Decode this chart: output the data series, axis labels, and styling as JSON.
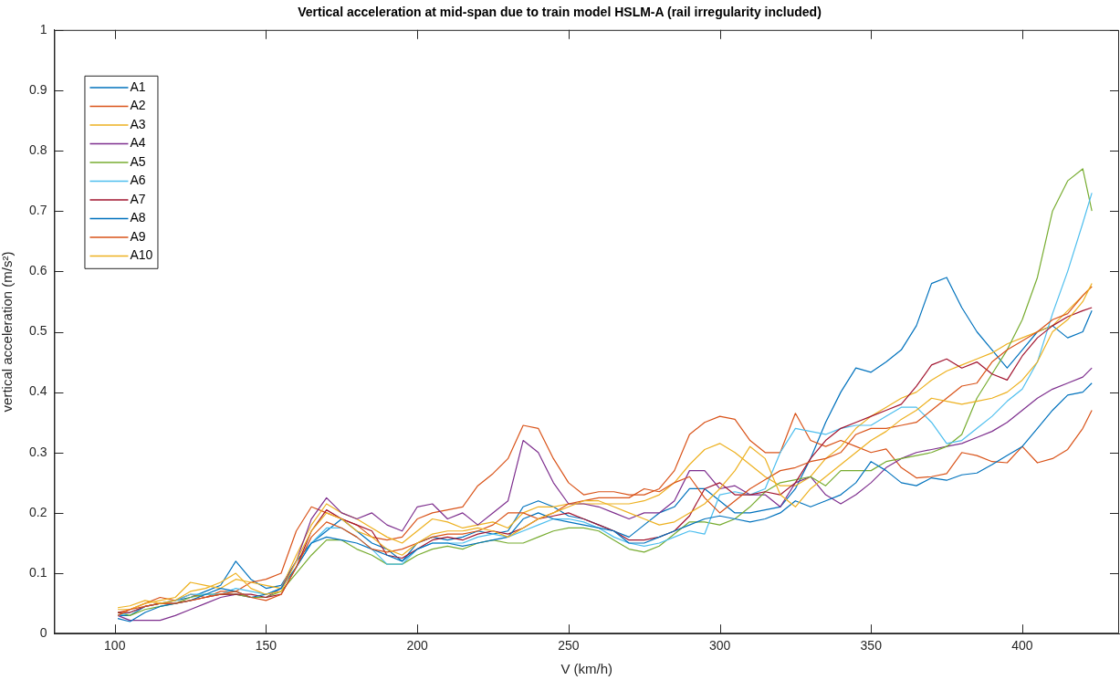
{
  "chart_data": {
    "type": "line",
    "title": "Vertical acceleration at mid-span due to train model HSLM-A (rail irregularity included)",
    "xlabel": "V (km/h)",
    "ylabel": "vertical acceleration (m/s²)",
    "x": [
      101,
      105,
      110,
      115,
      120,
      125,
      130,
      135,
      140,
      145,
      150,
      155,
      160,
      165,
      170,
      175,
      180,
      185,
      190,
      195,
      200,
      205,
      210,
      215,
      220,
      225,
      230,
      235,
      240,
      245,
      250,
      255,
      260,
      265,
      270,
      275,
      280,
      285,
      290,
      295,
      300,
      305,
      310,
      315,
      320,
      325,
      330,
      335,
      340,
      345,
      350,
      355,
      360,
      365,
      370,
      375,
      380,
      385,
      390,
      395,
      400,
      405,
      410,
      415,
      420,
      423
    ],
    "xlim": [
      80,
      432
    ],
    "xticks": [
      100,
      150,
      200,
      250,
      300,
      350,
      400
    ],
    "ylim": [
      0,
      1
    ],
    "yticks": [
      0,
      0.1,
      0.2,
      0.3,
      0.4,
      0.5,
      0.6,
      0.7,
      0.8,
      0.9,
      1
    ],
    "grid": false,
    "legend": "top left",
    "marker": "none",
    "line_style": "solid",
    "series": [
      {
        "name": "A1",
        "color": "#0072bd",
        "values": [
          0.03,
          0.03,
          0.045,
          0.05,
          0.055,
          0.06,
          0.07,
          0.08,
          0.12,
          0.09,
          0.075,
          0.08,
          0.12,
          0.15,
          0.17,
          0.19,
          0.17,
          0.15,
          0.14,
          0.12,
          0.15,
          0.16,
          0.155,
          0.16,
          0.17,
          0.165,
          0.17,
          0.21,
          0.22,
          0.21,
          0.195,
          0.19,
          0.18,
          0.17,
          0.16,
          0.18,
          0.2,
          0.21,
          0.24,
          0.24,
          0.22,
          0.2,
          0.2,
          0.205,
          0.21,
          0.24,
          0.29,
          0.35,
          0.4,
          0.44,
          0.433,
          0.45,
          0.47,
          0.51,
          0.58,
          0.59,
          0.54,
          0.5,
          0.47,
          0.44,
          0.47,
          0.5,
          0.51,
          0.49,
          0.5,
          0.535
        ]
      },
      {
        "name": "A2",
        "color": "#d95319",
        "values": [
          0.035,
          0.04,
          0.05,
          0.06,
          0.055,
          0.065,
          0.06,
          0.07,
          0.07,
          0.085,
          0.09,
          0.1,
          0.17,
          0.21,
          0.2,
          0.19,
          0.18,
          0.16,
          0.155,
          0.16,
          0.19,
          0.2,
          0.205,
          0.21,
          0.245,
          0.265,
          0.29,
          0.345,
          0.34,
          0.29,
          0.25,
          0.23,
          0.235,
          0.235,
          0.23,
          0.23,
          0.24,
          0.27,
          0.33,
          0.35,
          0.36,
          0.355,
          0.32,
          0.3,
          0.3,
          0.365,
          0.32,
          0.31,
          0.32,
          0.31,
          0.3,
          0.306,
          0.275,
          0.258,
          0.26,
          0.265,
          0.3,
          0.295,
          0.285,
          0.283,
          0.31,
          0.283,
          0.29,
          0.305,
          0.34,
          0.37
        ]
      },
      {
        "name": "A3",
        "color": "#edb120",
        "values": [
          0.04,
          0.04,
          0.05,
          0.055,
          0.06,
          0.085,
          0.08,
          0.075,
          0.09,
          0.085,
          0.08,
          0.075,
          0.13,
          0.18,
          0.215,
          0.2,
          0.19,
          0.175,
          0.16,
          0.15,
          0.17,
          0.19,
          0.185,
          0.175,
          0.18,
          0.185,
          0.175,
          0.2,
          0.21,
          0.21,
          0.215,
          0.215,
          0.215,
          0.215,
          0.215,
          0.22,
          0.23,
          0.25,
          0.28,
          0.305,
          0.315,
          0.3,
          0.28,
          0.26,
          0.245,
          0.245,
          0.26,
          0.29,
          0.31,
          0.34,
          0.36,
          0.375,
          0.39,
          0.4,
          0.42,
          0.435,
          0.445,
          0.455,
          0.465,
          0.48,
          0.49,
          0.5,
          0.51,
          0.535,
          0.56,
          0.575
        ]
      },
      {
        "name": "A4",
        "color": "#7e2f8e",
        "values": [
          0.03,
          0.022,
          0.022,
          0.022,
          0.03,
          0.04,
          0.05,
          0.06,
          0.065,
          0.06,
          0.06,
          0.075,
          0.12,
          0.19,
          0.225,
          0.2,
          0.19,
          0.2,
          0.18,
          0.17,
          0.21,
          0.215,
          0.19,
          0.2,
          0.18,
          0.2,
          0.22,
          0.32,
          0.3,
          0.25,
          0.215,
          0.215,
          0.21,
          0.2,
          0.19,
          0.2,
          0.2,
          0.22,
          0.27,
          0.27,
          0.24,
          0.245,
          0.23,
          0.23,
          0.21,
          0.25,
          0.26,
          0.23,
          0.215,
          0.23,
          0.25,
          0.275,
          0.29,
          0.3,
          0.305,
          0.31,
          0.315,
          0.325,
          0.335,
          0.35,
          0.37,
          0.39,
          0.405,
          0.415,
          0.425,
          0.44
        ]
      },
      {
        "name": "A5",
        "color": "#77ac30",
        "values": [
          0.035,
          0.03,
          0.04,
          0.045,
          0.05,
          0.06,
          0.065,
          0.065,
          0.065,
          0.06,
          0.06,
          0.07,
          0.1,
          0.13,
          0.155,
          0.155,
          0.14,
          0.13,
          0.115,
          0.115,
          0.13,
          0.14,
          0.145,
          0.14,
          0.15,
          0.155,
          0.15,
          0.15,
          0.16,
          0.17,
          0.175,
          0.175,
          0.17,
          0.155,
          0.14,
          0.135,
          0.145,
          0.165,
          0.185,
          0.185,
          0.18,
          0.19,
          0.21,
          0.235,
          0.25,
          0.255,
          0.26,
          0.245,
          0.27,
          0.27,
          0.27,
          0.285,
          0.29,
          0.295,
          0.3,
          0.31,
          0.33,
          0.39,
          0.43,
          0.47,
          0.52,
          0.59,
          0.7,
          0.75,
          0.77,
          0.7
        ]
      },
      {
        "name": "A6",
        "color": "#4dbeee",
        "values": [
          0.03,
          0.035,
          0.045,
          0.05,
          0.055,
          0.065,
          0.065,
          0.065,
          0.075,
          0.07,
          0.065,
          0.075,
          0.11,
          0.15,
          0.175,
          0.175,
          0.16,
          0.14,
          0.115,
          0.115,
          0.14,
          0.15,
          0.15,
          0.15,
          0.16,
          0.165,
          0.16,
          0.17,
          0.18,
          0.19,
          0.19,
          0.185,
          0.175,
          0.16,
          0.15,
          0.145,
          0.15,
          0.16,
          0.17,
          0.165,
          0.23,
          0.235,
          0.23,
          0.24,
          0.3,
          0.34,
          0.335,
          0.33,
          0.34,
          0.345,
          0.345,
          0.36,
          0.375,
          0.375,
          0.35,
          0.315,
          0.32,
          0.34,
          0.36,
          0.385,
          0.405,
          0.45,
          0.53,
          0.6,
          0.68,
          0.73
        ]
      },
      {
        "name": "A7",
        "color": "#a2142f",
        "values": [
          0.035,
          0.035,
          0.045,
          0.05,
          0.05,
          0.055,
          0.06,
          0.065,
          0.065,
          0.065,
          0.06,
          0.065,
          0.11,
          0.17,
          0.205,
          0.19,
          0.18,
          0.17,
          0.13,
          0.125,
          0.14,
          0.155,
          0.16,
          0.155,
          0.165,
          0.17,
          0.165,
          0.175,
          0.19,
          0.195,
          0.2,
          0.19,
          0.18,
          0.17,
          0.155,
          0.155,
          0.16,
          0.17,
          0.195,
          0.24,
          0.25,
          0.23,
          0.23,
          0.235,
          0.23,
          0.25,
          0.29,
          0.32,
          0.34,
          0.35,
          0.36,
          0.37,
          0.38,
          0.41,
          0.445,
          0.455,
          0.44,
          0.45,
          0.43,
          0.42,
          0.46,
          0.49,
          0.51,
          0.525,
          0.535,
          0.54
        ]
      },
      {
        "name": "A8",
        "color": "#0072bd",
        "values": [
          0.025,
          0.02,
          0.035,
          0.045,
          0.05,
          0.055,
          0.065,
          0.075,
          0.07,
          0.06,
          0.065,
          0.075,
          0.11,
          0.15,
          0.16,
          0.155,
          0.15,
          0.14,
          0.13,
          0.12,
          0.14,
          0.15,
          0.15,
          0.145,
          0.15,
          0.155,
          0.16,
          0.19,
          0.2,
          0.19,
          0.185,
          0.18,
          0.175,
          0.17,
          0.15,
          0.15,
          0.16,
          0.17,
          0.18,
          0.19,
          0.195,
          0.19,
          0.185,
          0.19,
          0.2,
          0.22,
          0.21,
          0.22,
          0.23,
          0.25,
          0.285,
          0.27,
          0.25,
          0.245,
          0.258,
          0.254,
          0.263,
          0.266,
          0.28,
          0.295,
          0.31,
          0.34,
          0.37,
          0.395,
          0.4,
          0.415
        ]
      },
      {
        "name": "A9",
        "color": "#d95319",
        "values": [
          0.03,
          0.04,
          0.045,
          0.05,
          0.05,
          0.055,
          0.06,
          0.065,
          0.07,
          0.06,
          0.055,
          0.065,
          0.11,
          0.16,
          0.185,
          0.175,
          0.16,
          0.14,
          0.135,
          0.14,
          0.15,
          0.16,
          0.165,
          0.165,
          0.17,
          0.18,
          0.2,
          0.2,
          0.19,
          0.2,
          0.215,
          0.22,
          0.225,
          0.225,
          0.225,
          0.24,
          0.235,
          0.25,
          0.26,
          0.225,
          0.2,
          0.22,
          0.24,
          0.255,
          0.27,
          0.275,
          0.285,
          0.29,
          0.3,
          0.33,
          0.34,
          0.34,
          0.345,
          0.35,
          0.37,
          0.39,
          0.41,
          0.415,
          0.45,
          0.47,
          0.485,
          0.5,
          0.52,
          0.53,
          0.56,
          0.575
        ]
      },
      {
        "name": "A10",
        "color": "#edb120",
        "values": [
          0.043,
          0.046,
          0.055,
          0.05,
          0.055,
          0.07,
          0.075,
          0.085,
          0.1,
          0.075,
          0.065,
          0.07,
          0.12,
          0.17,
          0.2,
          0.19,
          0.17,
          0.16,
          0.14,
          0.13,
          0.15,
          0.165,
          0.17,
          0.17,
          0.175,
          0.17,
          0.16,
          0.175,
          0.19,
          0.2,
          0.21,
          0.22,
          0.22,
          0.21,
          0.2,
          0.19,
          0.18,
          0.185,
          0.2,
          0.215,
          0.24,
          0.27,
          0.31,
          0.29,
          0.23,
          0.21,
          0.24,
          0.26,
          0.28,
          0.3,
          0.32,
          0.335,
          0.355,
          0.37,
          0.39,
          0.385,
          0.38,
          0.385,
          0.39,
          0.4,
          0.42,
          0.45,
          0.5,
          0.52,
          0.55,
          0.58
        ]
      }
    ]
  }
}
